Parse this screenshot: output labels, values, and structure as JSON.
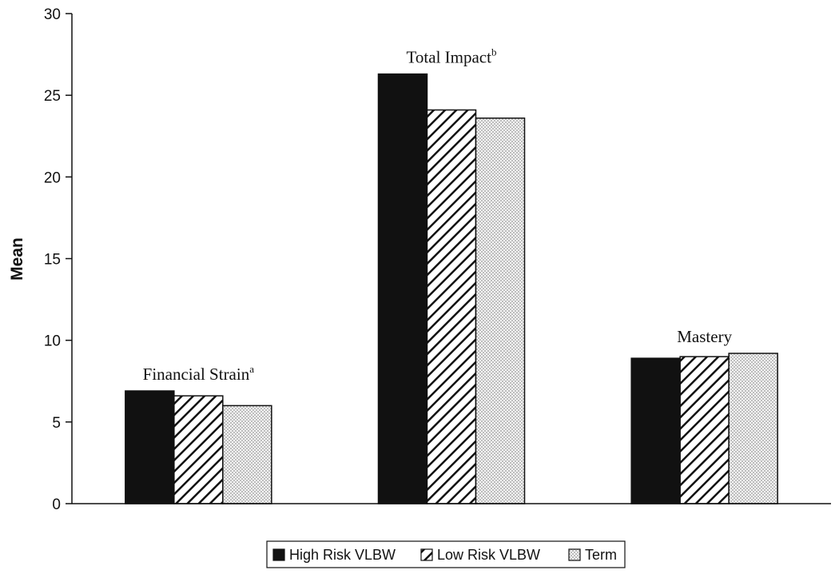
{
  "chart_data": {
    "type": "bar",
    "title": "",
    "xlabel": "",
    "ylabel": "Mean",
    "ylim": [
      0,
      30
    ],
    "yticks": [
      0,
      5,
      10,
      15,
      20,
      25,
      30
    ],
    "grid": false,
    "legend_position": "bottom",
    "categories": [
      {
        "label": "Financial Strain",
        "sup": "a"
      },
      {
        "label": "Total Impact",
        "sup": "b"
      },
      {
        "label": "Mastery",
        "sup": ""
      }
    ],
    "series": [
      {
        "name": "High Risk VLBW",
        "values": [
          6.9,
          26.3,
          8.9
        ],
        "fill": "solid",
        "color": "#111111"
      },
      {
        "name": "Low Risk VLBW",
        "values": [
          6.6,
          24.1,
          9.0
        ],
        "fill": "diagonal-hatch",
        "color": "#111111"
      },
      {
        "name": "Term",
        "values": [
          6.0,
          23.6,
          9.2
        ],
        "fill": "dotted",
        "color": "#cccccc"
      }
    ]
  }
}
